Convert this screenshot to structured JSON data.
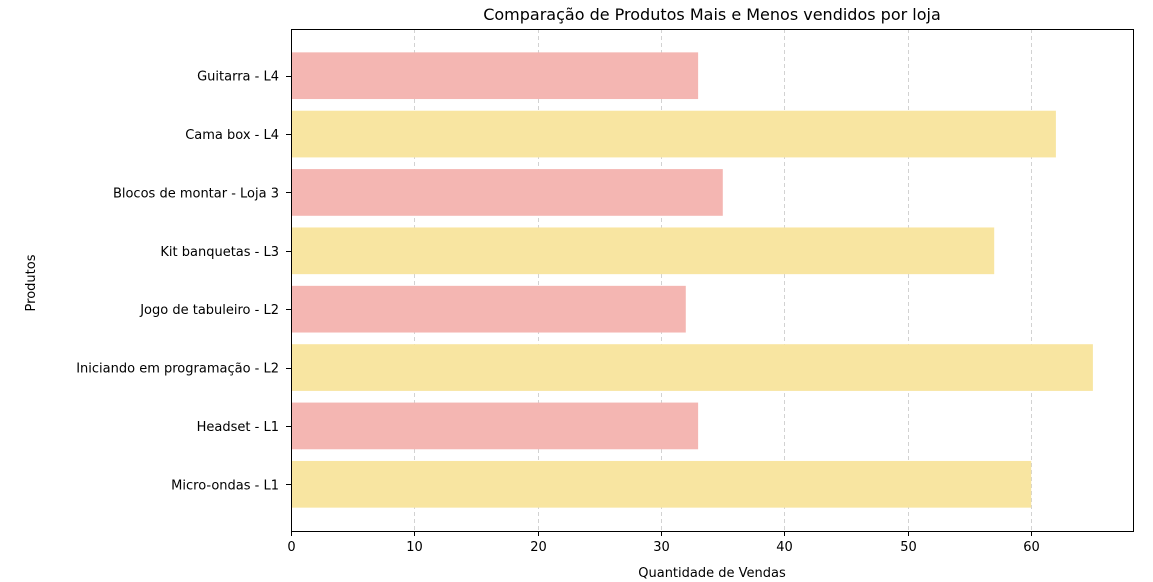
{
  "chart_data": {
    "type": "bar",
    "orientation": "horizontal",
    "title": "Comparação de Produtos Mais e Menos vendidos por loja",
    "xlabel": "Quantidade de Vendas",
    "ylabel": "Produtos",
    "xlim": [
      0,
      68.25
    ],
    "xticks": [
      0,
      10,
      20,
      30,
      40,
      50,
      60
    ],
    "grid": "vertical dashed",
    "categories": [
      "Micro-ondas - L1",
      "Headset - L1",
      "Iniciando em programação - L2",
      "Jogo de tabuleiro - L2",
      "Kit banquetas - L3",
      "Blocos de montar - Loja 3",
      "Cama box - L4",
      "Guitarra - L4"
    ],
    "values": [
      60,
      33,
      65,
      32,
      57,
      35,
      62,
      33
    ],
    "bar_colors": [
      "#f8e5a1",
      "#f4b6b2",
      "#f8e5a1",
      "#f4b6b2",
      "#f8e5a1",
      "#f4b6b2",
      "#f8e5a1",
      "#f4b6b2"
    ]
  }
}
